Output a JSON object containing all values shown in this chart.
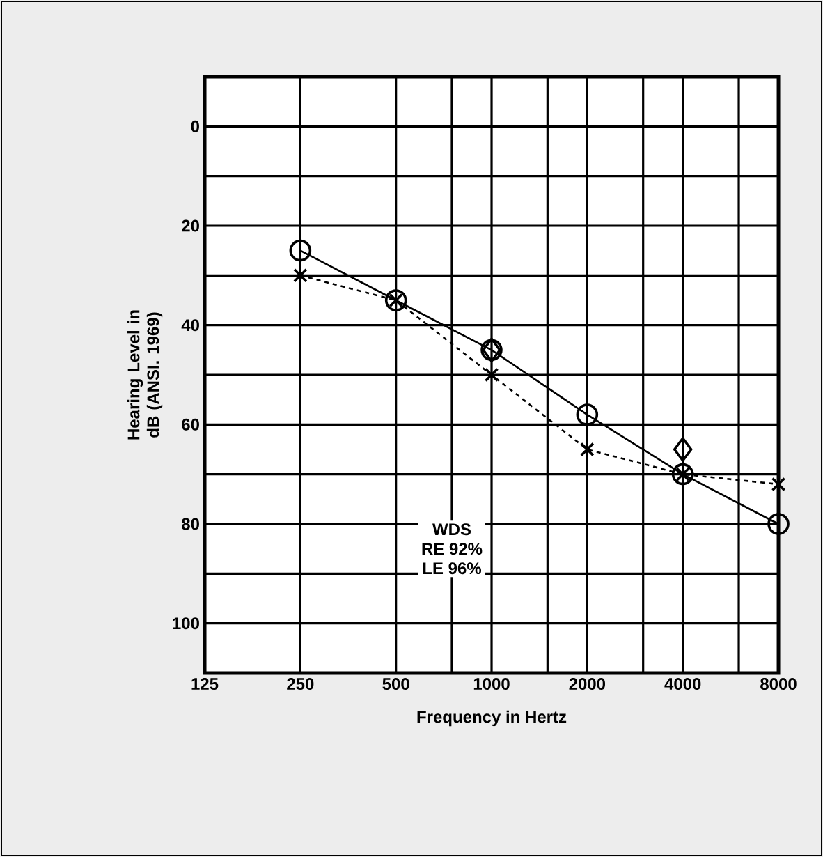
{
  "chart_data": {
    "type": "line",
    "xlabel": "Frequency in Hertz",
    "ylabel": "Hearing Level in dB (ANSI. 1969)",
    "x": [
      250,
      500,
      1000,
      2000,
      4000,
      8000
    ],
    "series": [
      {
        "color": "#000000",
        "values": [
          25,
          35,
          45,
          58,
          70,
          80
        ],
        "marker": "circle",
        "line_style": "solid"
      },
      {
        "color": "#000000",
        "values": [
          30,
          35,
          50,
          65,
          70,
          72
        ],
        "marker": "cross",
        "line_style": "dashed"
      },
      {
        "type": "scatter",
        "color": "#000000",
        "values": [
          null,
          null,
          45,
          null,
          65,
          null
        ],
        "marker": "diamond"
      }
    ],
    "log": "x",
    "xlim": [
      125,
      8000
    ],
    "ylim": [
      110,
      -10
    ],
    "xticks": [
      125,
      250,
      500,
      {
        "value": 750,
        "label": null
      },
      1000,
      {
        "value": 1500,
        "label": null
      },
      2000,
      {
        "value": 3000,
        "label": null
      },
      4000,
      {
        "value": 6000,
        "label": null
      },
      8000
    ],
    "yticks": [
      {
        "value": -10,
        "label": null
      },
      0,
      {
        "value": 10,
        "label": null
      },
      20,
      {
        "value": 30,
        "label": null
      },
      40,
      {
        "value": 50,
        "label": null
      },
      60,
      {
        "value": 70,
        "label": null
      },
      80,
      {
        "value": 90,
        "label": null
      },
      100,
      {
        "value": 110,
        "label": null
      }
    ],
    "grid": true,
    "annotations": [
      "WDS",
      "RE 92%",
      "LE 96%"
    ]
  }
}
